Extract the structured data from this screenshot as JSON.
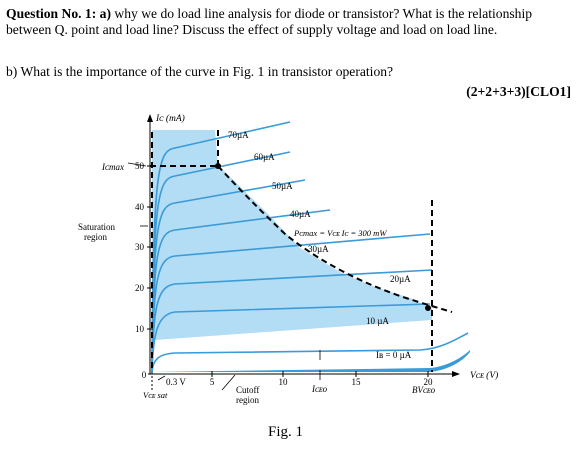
{
  "question": {
    "label": "Question No. 1: a)",
    "part_a_text": " why we do load line analysis for diode or transistor? What is the relationship between Q. point and load line? Discuss the effect of supply voltage and load on load line.",
    "part_b_text": "b) What is the importance of the curve in Fig. 1 in transistor operation?",
    "marks": "(2+2+3+3)[CLO1]"
  },
  "figure": {
    "caption": "Fig. 1",
    "y_axis_label": "Iᴄ (mA)",
    "x_axis_label": "Vᴄᴇ (V)",
    "icmax_label": "Iᴄmax",
    "saturation_label": [
      "Saturation",
      "region"
    ],
    "cutoff_label": [
      "Cutoff",
      "region"
    ],
    "vcesat_value": "0.3 V",
    "vcesat_label": "Vᴄᴇ sat",
    "iceo_label": "Iᴄᴇᴏ",
    "bvceo_label": "BVᴄᴇᴏ",
    "pcmax_label": "Pᴄmax = Vᴄᴇ Iᴄ = 300 mW",
    "y_ticks": [
      "10",
      "20",
      "30",
      "40",
      "50"
    ],
    "x_ticks": [
      "0",
      "5",
      "10",
      "15",
      "20"
    ],
    "curve_labels": [
      "70µA",
      "60µA",
      "50µA",
      "40µA",
      "30µA",
      "20µA",
      "10 µA",
      "Iʙ = 0 µA"
    ]
  },
  "colors": {
    "region": "#b3dcf5",
    "curve": "#3a9bd8",
    "boundary": "#000000"
  }
}
